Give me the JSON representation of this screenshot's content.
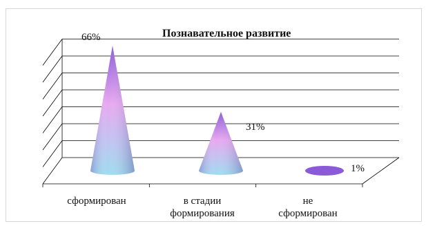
{
  "chart_data": {
    "type": "bar",
    "style": "3d-cone",
    "title": "Познавательное развитие",
    "categories": [
      [
        "сформирован"
      ],
      [
        "в стадии",
        "формирования"
      ],
      [
        "не",
        "сформирован"
      ]
    ],
    "values": [
      66,
      31,
      1
    ],
    "data_labels": [
      "66%",
      "31%",
      "1%"
    ],
    "ylim": [
      0,
      70
    ],
    "grid": true,
    "legend": "none",
    "colors": {
      "cone_top": "#8a5ad8",
      "cone_mid": "#e8a8f0",
      "cone_bottom": "#9edcf0",
      "grid": "#000000",
      "frame": "#d6d6d6"
    }
  }
}
